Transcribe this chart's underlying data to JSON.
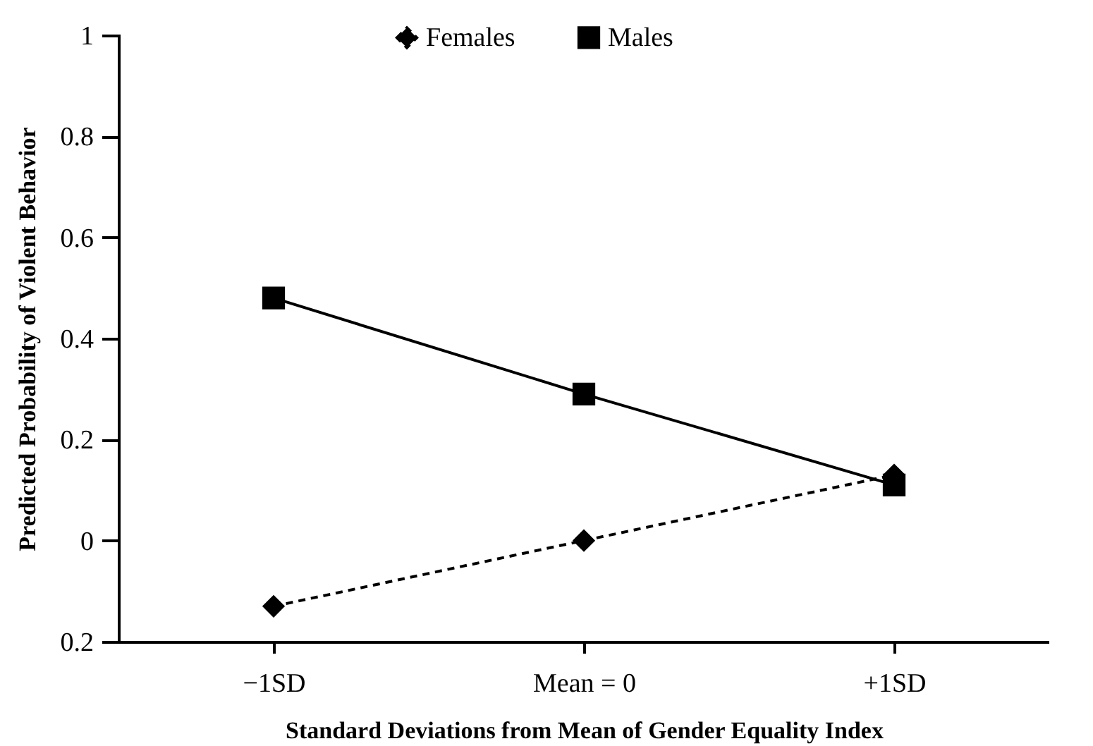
{
  "chart_data": {
    "type": "line",
    "xlabel": "Standard Deviations from Mean of Gender Equality Index",
    "ylabel": "Predicted Probability of Violent Behavior",
    "categories": [
      "−1SD",
      "Mean = 0",
      "+1SD"
    ],
    "series": [
      {
        "name": "Females",
        "color": "#000000",
        "values": [
          -0.13,
          0,
          0.13
        ],
        "marker": "diamond",
        "line_style": "dashed"
      },
      {
        "name": "Males",
        "color": "#000000",
        "values": [
          0.48,
          0.29,
          0.11
        ],
        "marker": "square",
        "line_style": "solid"
      }
    ],
    "ylim": [
      -0.2,
      1
    ],
    "yticks": [
      {
        "value": -0.2,
        "label": "0.2"
      },
      0,
      0.2,
      0.4,
      0.6,
      0.8,
      1
    ],
    "grid": false,
    "legend": "top"
  }
}
